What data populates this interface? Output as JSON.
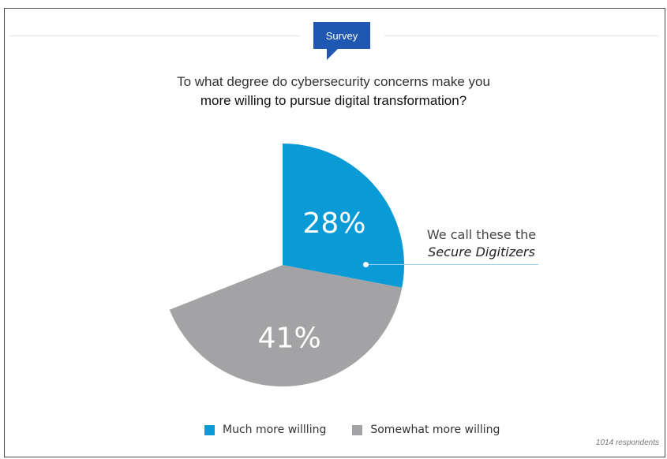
{
  "badge": {
    "label": "Survey"
  },
  "question": {
    "line1": "To what degree do cybersecurity concerns make you",
    "line2": "more willing to pursue digital transformation?"
  },
  "callout": {
    "line1": "We call these the",
    "line2": "Secure Digitizers"
  },
  "footnote": "1014 respondents",
  "colors": {
    "much": "#0a9ad6",
    "somewhat": "#a3a3a5",
    "badge": "#1f57b3"
  },
  "chart_data": {
    "type": "pie",
    "series": [
      {
        "name": "Much more willling",
        "value": 28,
        "label": "28%"
      },
      {
        "name": "Somewhat more willing",
        "value": 41,
        "label": "41%"
      }
    ],
    "start_angle_deg": 0,
    "legend": [
      "Much more willling",
      "Somewhat more willing"
    ],
    "legend_position": "bottom"
  }
}
